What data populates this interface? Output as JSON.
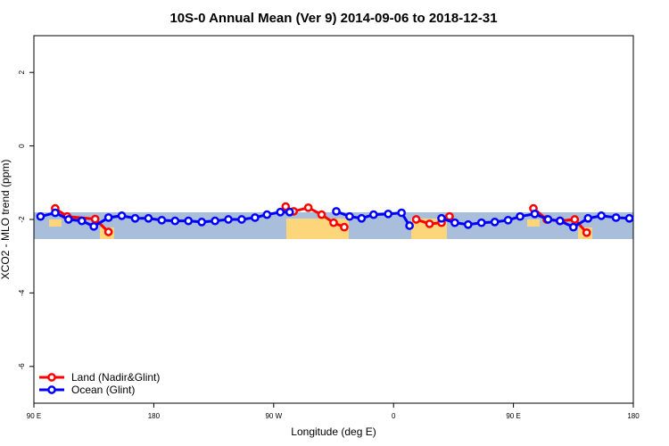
{
  "chart_data": {
    "type": "line",
    "title": "10S-0 Annual Mean (Ver 9)   2014-09-06 to 2018-12-31",
    "xlabel": "Longitude (deg E)",
    "ylabel": "XCO2 - MLO trend (ppm)",
    "xlim": [
      90,
      540
    ],
    "ylim": [
      -7,
      3
    ],
    "xticks": [
      {
        "value": 90,
        "label": "90 E"
      },
      180,
      {
        "value": 270,
        "label": "90 W"
      },
      {
        "value": 360,
        "label": "0"
      },
      {
        "value": 450,
        "label": "90 E"
      },
      {
        "value": 540,
        "label": "180"
      }
    ],
    "yticks": [
      2,
      0,
      -2,
      -4,
      -6
    ],
    "legend": "bottom-left",
    "series": [
      {
        "name": "Land (Nadir&Glint)",
        "color": "#ff0000",
        "x": [
          106,
          115,
          136,
          146,
          200,
          279,
          285,
          296,
          306,
          315,
          323,
          350,
          377,
          387,
          396,
          402,
          430,
          465,
          475,
          485,
          496,
          505
        ],
        "values": [
          -1.7,
          -1.92,
          -1.99,
          -2.34,
          null,
          -1.65,
          -1.78,
          -1.68,
          -1.87,
          -2.09,
          -2.21,
          null,
          -2.0,
          -2.12,
          -2.09,
          -1.92,
          null,
          -1.7,
          -2.0,
          -2.04,
          -2.0,
          -2.36
        ]
      },
      {
        "name": "Ocean (Glint)",
        "color": "#0000ff",
        "x": [
          95,
          106,
          116,
          126,
          135,
          146,
          156,
          166,
          176,
          186,
          196,
          206,
          216,
          226,
          236,
          246,
          256,
          265,
          275,
          282,
          300,
          317,
          327,
          336,
          345,
          356,
          366,
          372,
          385,
          396,
          406,
          416,
          426,
          436,
          446,
          455,
          466,
          476,
          485,
          495,
          506,
          516,
          527,
          537
        ],
        "values": [
          -1.92,
          -1.82,
          -2.0,
          -2.04,
          -2.19,
          -1.95,
          -1.9,
          -1.97,
          -1.97,
          -2.02,
          -2.04,
          -2.04,
          -2.07,
          -2.04,
          -2.0,
          -2.0,
          -1.95,
          -1.87,
          -1.8,
          -1.8,
          null,
          -1.78,
          -1.92,
          -1.97,
          -1.87,
          -1.85,
          -1.82,
          -2.17,
          null,
          -1.97,
          -2.09,
          -2.14,
          -2.09,
          -2.07,
          -2.02,
          -1.92,
          -1.85,
          -2.0,
          -2.04,
          -2.21,
          -1.97,
          -1.9,
          -1.95,
          -1.97
        ]
      }
    ]
  }
}
